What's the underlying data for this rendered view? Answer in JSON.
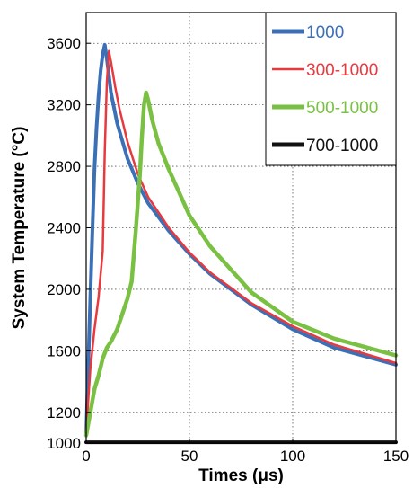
{
  "chart_data": {
    "type": "line",
    "title": "",
    "xlabel": "Times (μs)",
    "ylabel": "System Temperature (°C)",
    "xlim": [
      0,
      150
    ],
    "ylim": [
      1000,
      3800
    ],
    "x_ticks": [
      0,
      50,
      100,
      150
    ],
    "y_ticks": [
      1000,
      1200,
      1600,
      2000,
      2400,
      2800,
      3200,
      3600
    ],
    "grid": true,
    "grid_style": "dotted",
    "legend_position": "top-right",
    "series": [
      {
        "name": "1000",
        "color": "#3b6fb6",
        "x": [
          0,
          1,
          2,
          3,
          4,
          5,
          6,
          7,
          8,
          9,
          10,
          12,
          15,
          20,
          25,
          30,
          40,
          50,
          60,
          80,
          100,
          120,
          150
        ],
        "y": [
          1050,
          1500,
          1950,
          2380,
          2780,
          3050,
          3260,
          3420,
          3530,
          3590,
          3500,
          3280,
          3080,
          2850,
          2690,
          2560,
          2380,
          2230,
          2100,
          1900,
          1740,
          1620,
          1510
        ]
      },
      {
        "name": "300-1000",
        "color": "#e8393f",
        "x": [
          0,
          1,
          2,
          4,
          6,
          8,
          9,
          10,
          11,
          12,
          14,
          16,
          20,
          25,
          30,
          40,
          50,
          60,
          80,
          100,
          120,
          150
        ],
        "y": [
          1080,
          1280,
          1480,
          1740,
          1950,
          2250,
          2900,
          3350,
          3550,
          3480,
          3320,
          3180,
          2960,
          2750,
          2600,
          2400,
          2240,
          2110,
          1910,
          1760,
          1640,
          1520
        ]
      },
      {
        "name": "500-1000",
        "color": "#7ac143",
        "x": [
          0,
          2,
          4,
          6,
          8,
          10,
          12,
          15,
          18,
          20,
          22,
          24,
          26,
          27,
          28,
          29,
          30,
          32,
          35,
          40,
          50,
          60,
          80,
          100,
          120,
          150
        ],
        "y": [
          1050,
          1200,
          1350,
          1440,
          1550,
          1620,
          1660,
          1740,
          1860,
          1940,
          2050,
          2380,
          2750,
          3000,
          3200,
          3280,
          3230,
          3100,
          2950,
          2780,
          2480,
          2280,
          1980,
          1790,
          1680,
          1570
        ]
      },
      {
        "name": "700-1000",
        "color": "#111111",
        "x": [
          0,
          150
        ],
        "y": [
          1005,
          1005
        ]
      }
    ]
  }
}
